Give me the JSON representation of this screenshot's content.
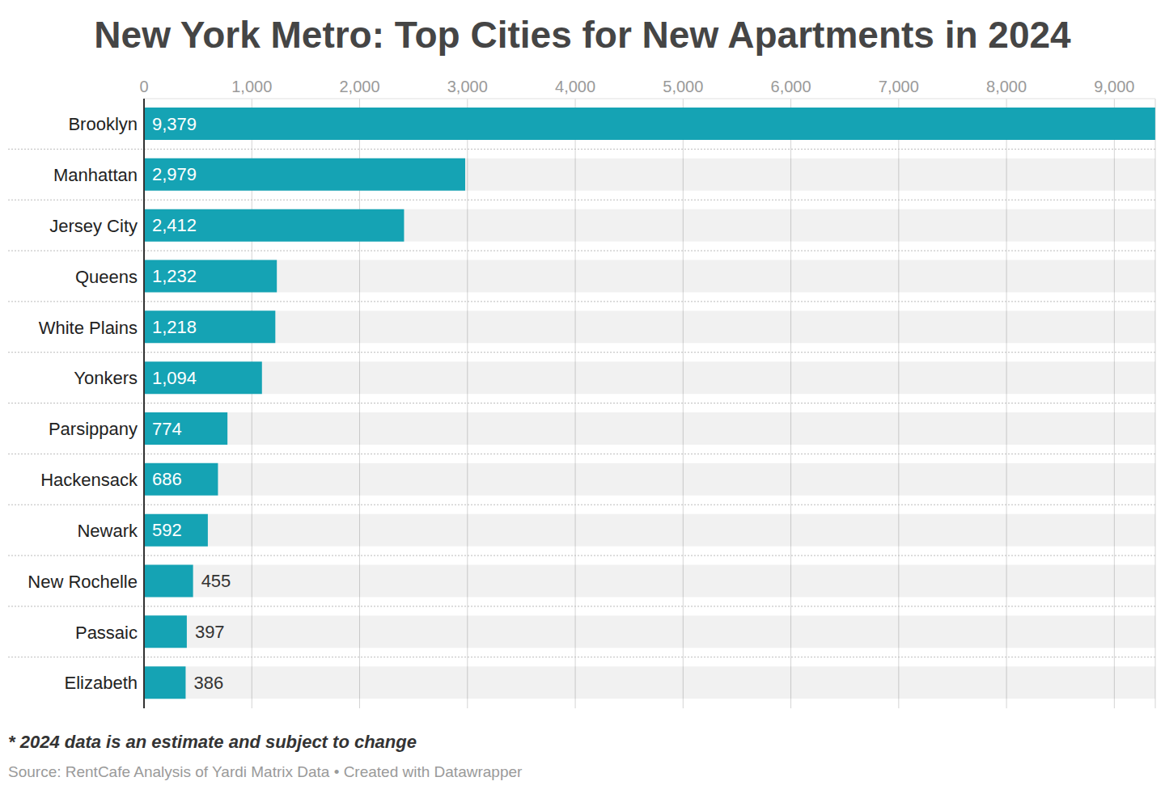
{
  "chart_data": {
    "type": "bar",
    "orientation": "horizontal",
    "title": "New York Metro: Top Cities for New Apartments in 2024",
    "footnote": "* 2024 data is an estimate and subject to change",
    "source": "Source: RentCafe Analysis of Yardi Matrix Data • Created with Datawrapper",
    "categories": [
      "Brooklyn",
      "Manhattan",
      "Jersey City",
      "Queens",
      "White Plains",
      "Yonkers",
      "Parsippany",
      "Hackensack",
      "Newark",
      "New Rochelle",
      "Passaic",
      "Elizabeth"
    ],
    "values": [
      9379,
      2979,
      2412,
      1232,
      1218,
      1094,
      774,
      686,
      592,
      455,
      397,
      386
    ],
    "value_labels": [
      "9,379",
      "2,979",
      "2,412",
      "1,232",
      "1,218",
      "1,094",
      "774",
      "686",
      "592",
      "455",
      "397",
      "386"
    ],
    "color": "#15a3b4",
    "xlim": [
      0,
      9380
    ],
    "xticks": [
      0,
      {
        "value": 1000,
        "label": "1,000"
      },
      {
        "value": 2000,
        "label": "2,000"
      },
      {
        "value": 3000,
        "label": "3,000"
      },
      {
        "value": 4000,
        "label": "4,000"
      },
      {
        "value": 5000,
        "label": "5,000"
      },
      {
        "value": 6000,
        "label": "6,000"
      },
      {
        "value": 7000,
        "label": "7,000"
      },
      {
        "value": 8000,
        "label": "8,000"
      },
      {
        "value": 9000,
        "label": "9,000"
      }
    ],
    "grid": true,
    "data_labels": true
  }
}
